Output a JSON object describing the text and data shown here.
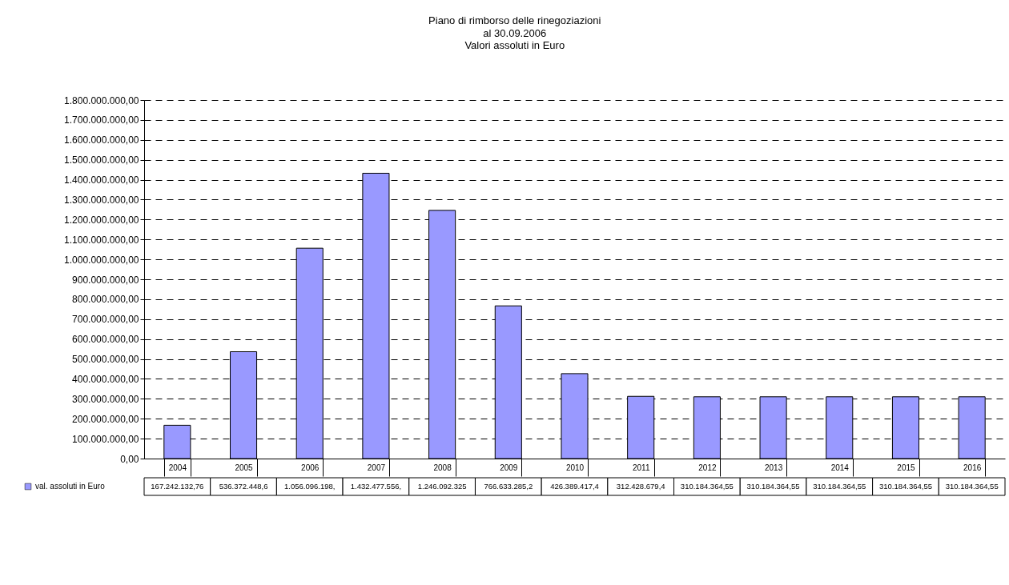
{
  "chart_data": {
    "type": "bar",
    "title": "Piano di rimborso delle rinegoziazioni",
    "subtitle": "al 30.09.2006\nValori assoluti in Euro",
    "categories": [
      "2004",
      "2005",
      "2006",
      "2007",
      "2008",
      "2009",
      "2010",
      "2011",
      "2012",
      "2013",
      "2014",
      "2015",
      "2016"
    ],
    "series": [
      {
        "name": "val. assoluti in Euro",
        "color": "#9999ff",
        "values": [
          167242132.76,
          536372448.6,
          1056096198,
          1432477556,
          1246092325,
          766633285.2,
          426389417.4,
          312428679.4,
          310184364.55,
          310184364.55,
          310184364.55,
          310184364.55,
          310184364.55
        ],
        "value_labels": [
          "167.242.132,76",
          "536.372.448,6",
          "1.056.096.198,",
          "1.432.477.556,",
          "1.246.092.325",
          "766.633.285,2",
          "426.389.417,4",
          "312.428.679,4",
          "310.184.364,55",
          "310.184.364,55",
          "310.184.364,55",
          "310.184.364,55",
          "310.184.364,55"
        ]
      }
    ],
    "ylim": [
      0,
      1800000000
    ],
    "yticks": [
      {
        "value": 0,
        "label": "0,00"
      },
      {
        "value": 100000000,
        "label": "100.000.000,00"
      },
      {
        "value": 200000000,
        "label": "200.000.000,00"
      },
      {
        "value": 300000000,
        "label": "300.000.000,00"
      },
      {
        "value": 400000000,
        "label": "400.000.000,00"
      },
      {
        "value": 500000000,
        "label": "500.000.000,00"
      },
      {
        "value": 600000000,
        "label": "600.000.000,00"
      },
      {
        "value": 700000000,
        "label": "700.000.000,00"
      },
      {
        "value": 800000000,
        "label": "800.000.000,00"
      },
      {
        "value": 900000000,
        "label": "900.000.000,00"
      },
      {
        "value": 1000000000,
        "label": "1.000.000.000,00"
      },
      {
        "value": 1100000000,
        "label": "1.100.000.000,00"
      },
      {
        "value": 1200000000,
        "label": "1.200.000.000,00"
      },
      {
        "value": 1300000000,
        "label": "1.300.000.000,00"
      },
      {
        "value": 1400000000,
        "label": "1.400.000.000,00"
      },
      {
        "value": 1500000000,
        "label": "1.500.000.000,00"
      },
      {
        "value": 1600000000,
        "label": "1.600.000.000,00"
      },
      {
        "value": 1700000000,
        "label": "1.700.000.000,00"
      },
      {
        "value": 1800000000,
        "label": "1.800.000.000,00"
      }
    ],
    "grid": "y",
    "legend": "bottom left"
  }
}
